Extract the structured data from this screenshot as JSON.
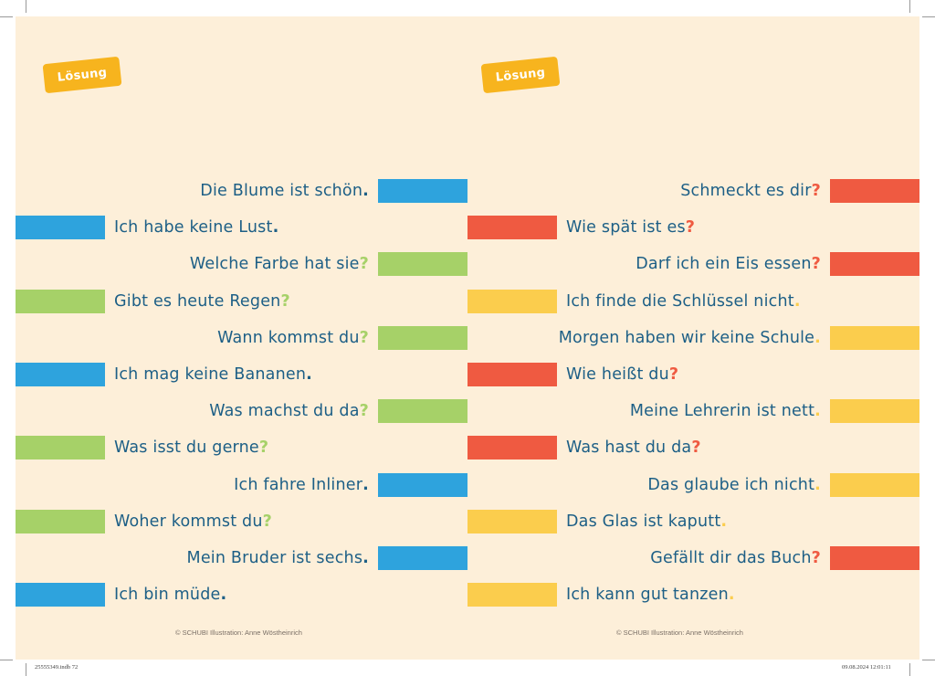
{
  "colors": {
    "blue": "#2ea3dd",
    "green": "#a6d168",
    "red": "#ef5a41",
    "yellow": "#fbcd4d",
    "text": "#1d5f86"
  },
  "left": {
    "badge": "Lösung",
    "footer": "© SCHUBI  Illustration: Anne Wöstheinrich",
    "rows": [
      {
        "side": "right",
        "text": "Die Blume ist schön",
        "punct": ".",
        "color": "blue",
        "punct_color": "#1d5f86"
      },
      {
        "side": "left",
        "text": "Ich habe keine Lust",
        "punct": ".",
        "color": "blue",
        "punct_color": "#1d5f86"
      },
      {
        "side": "right",
        "text": "Welche Farbe hat sie",
        "punct": "?",
        "color": "green",
        "punct_color": "#a6d168"
      },
      {
        "side": "left",
        "text": "Gibt es heute Regen",
        "punct": "?",
        "color": "green",
        "punct_color": "#a6d168"
      },
      {
        "side": "right",
        "text": "Wann kommst du",
        "punct": "?",
        "color": "green",
        "punct_color": "#a6d168"
      },
      {
        "side": "left",
        "text": "Ich mag keine Bananen",
        "punct": ".",
        "color": "blue",
        "punct_color": "#1d5f86"
      },
      {
        "side": "right",
        "text": "Was machst du da",
        "punct": "?",
        "color": "green",
        "punct_color": "#a6d168"
      },
      {
        "side": "left",
        "text": "Was isst du gerne",
        "punct": "?",
        "color": "green",
        "punct_color": "#a6d168"
      },
      {
        "side": "right",
        "text": "Ich fahre Inliner",
        "punct": ".",
        "color": "blue",
        "punct_color": "#1d5f86"
      },
      {
        "side": "left",
        "text": "Woher kommst du",
        "punct": "?",
        "color": "green",
        "punct_color": "#a6d168"
      },
      {
        "side": "right",
        "text": "Mein Bruder ist sechs",
        "punct": ".",
        "color": "blue",
        "punct_color": "#1d5f86"
      },
      {
        "side": "left",
        "text": "Ich bin müde",
        "punct": ".",
        "color": "blue",
        "punct_color": "#1d5f86"
      }
    ]
  },
  "right": {
    "badge": "Lösung",
    "footer": "© SCHUBI  Illustration: Anne Wöstheinrich",
    "rows": [
      {
        "side": "right",
        "text": "Schmeckt es dir",
        "punct": "?",
        "color": "red",
        "punct_color": "#ef5a41"
      },
      {
        "side": "left",
        "text": "Wie spät ist es",
        "punct": "?",
        "color": "red",
        "punct_color": "#ef5a41"
      },
      {
        "side": "right",
        "text": "Darf ich ein Eis essen",
        "punct": "?",
        "color": "red",
        "punct_color": "#ef5a41"
      },
      {
        "side": "left",
        "text": "Ich finde die Schlüssel nicht",
        "punct": ".",
        "color": "yellow",
        "punct_color": "#fbcd4d"
      },
      {
        "side": "right",
        "text": "Morgen haben wir keine Schule",
        "punct": ".",
        "color": "yellow",
        "punct_color": "#fbcd4d"
      },
      {
        "side": "left",
        "text": "Wie heißt du",
        "punct": "?",
        "color": "red",
        "punct_color": "#ef5a41"
      },
      {
        "side": "right",
        "text": "Meine Lehrerin ist nett",
        "punct": ".",
        "color": "yellow",
        "punct_color": "#fbcd4d"
      },
      {
        "side": "left",
        "text": "Was hast du da",
        "punct": "?",
        "color": "red",
        "punct_color": "#ef5a41"
      },
      {
        "side": "right",
        "text": "Das glaube ich nicht",
        "punct": ".",
        "color": "yellow",
        "punct_color": "#fbcd4d"
      },
      {
        "side": "left",
        "text": "Das Glas ist kaputt",
        "punct": ".",
        "color": "yellow",
        "punct_color": "#fbcd4d"
      },
      {
        "side": "right",
        "text": "Gefällt dir das Buch",
        "punct": "?",
        "color": "red",
        "punct_color": "#ef5a41"
      },
      {
        "side": "left",
        "text": "Ich kann gut tanzen",
        "punct": ".",
        "color": "yellow",
        "punct_color": "#fbcd4d"
      }
    ]
  },
  "print_marks": {
    "left": "25555349.indb   72",
    "right": "09.08.2024   12:01:11"
  }
}
